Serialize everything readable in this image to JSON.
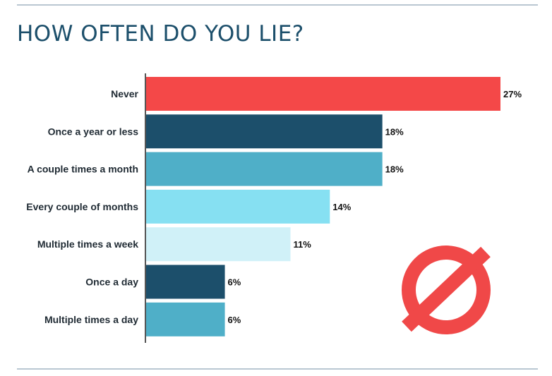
{
  "title": "HOW OFTEN DO YOU LIE?",
  "icon": {
    "name": "prohibited-icon",
    "color": "#f04848"
  },
  "chart_data": {
    "type": "bar",
    "orientation": "horizontal",
    "title": "HOW OFTEN DO YOU LIE?",
    "categories": [
      "Never",
      "Once a year or less",
      "A couple times a month",
      "Every couple of months",
      "Multiple times a week",
      "Once a day",
      "Multiple times a day"
    ],
    "values": [
      27,
      18,
      18,
      14,
      11,
      6,
      6
    ],
    "value_suffix": "%",
    "colors": [
      "#f44848",
      "#1c4f6b",
      "#4fafc8",
      "#86e0f2",
      "#d0f1f8",
      "#1c4f6b",
      "#4fafc8"
    ],
    "xlim": [
      0,
      27
    ],
    "grid": false,
    "legend": "none"
  }
}
